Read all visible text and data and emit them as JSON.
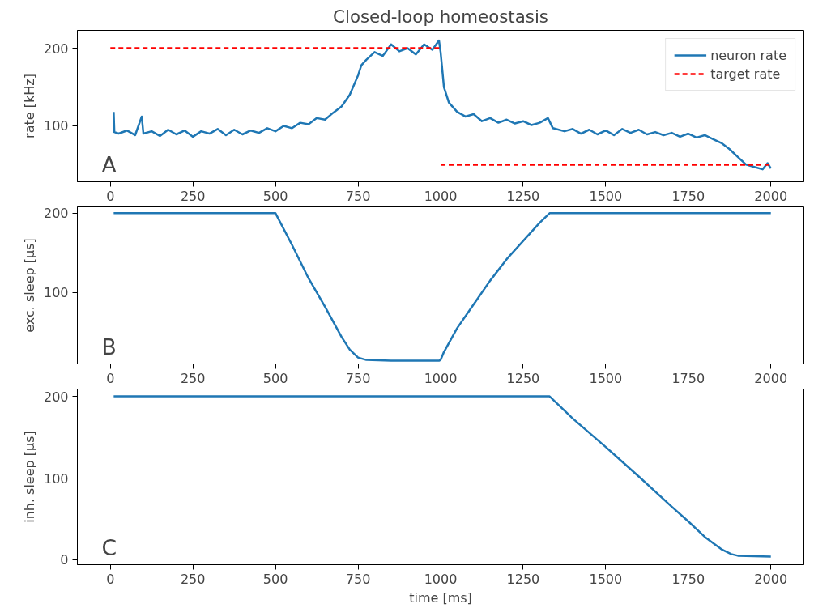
{
  "chart_data": [
    {
      "type": "line",
      "title": "Closed-loop homeostasis",
      "ylabel": "rate [kHz]",
      "xlim": [
        -100,
        2100
      ],
      "ylim": [
        28,
        223
      ],
      "xticks": [
        0,
        250,
        500,
        750,
        1000,
        1250,
        1500,
        1750,
        2000
      ],
      "yticks": [
        100,
        200
      ],
      "legend": "top right",
      "annotations": [
        "A"
      ],
      "series": [
        {
          "name": "neuron rate",
          "color": "#1f77b4",
          "line_style": "solid",
          "x": [
            10,
            12,
            25,
            50,
            75,
            95,
            100,
            125,
            150,
            175,
            200,
            225,
            250,
            275,
            300,
            325,
            350,
            375,
            400,
            425,
            450,
            475,
            500,
            525,
            550,
            575,
            600,
            625,
            650,
            675,
            700,
            725,
            750,
            760,
            775,
            800,
            825,
            850,
            875,
            900,
            925,
            950,
            975,
            995,
            1000,
            1010,
            1025,
            1050,
            1075,
            1100,
            1125,
            1150,
            1175,
            1200,
            1225,
            1250,
            1275,
            1300,
            1325,
            1340,
            1375,
            1400,
            1425,
            1450,
            1475,
            1500,
            1525,
            1550,
            1575,
            1600,
            1625,
            1650,
            1675,
            1700,
            1725,
            1750,
            1775,
            1800,
            1825,
            1850,
            1875,
            1900,
            1925,
            1950,
            1975,
            1990,
            2000
          ],
          "values": [
            118,
            92,
            90,
            94,
            88,
            112,
            90,
            93,
            87,
            95,
            89,
            94,
            86,
            93,
            90,
            96,
            88,
            95,
            89,
            94,
            91,
            97,
            93,
            100,
            97,
            104,
            102,
            110,
            108,
            117,
            125,
            140,
            165,
            178,
            185,
            195,
            190,
            205,
            196,
            200,
            192,
            205,
            198,
            210,
            195,
            150,
            130,
            118,
            112,
            115,
            106,
            110,
            104,
            108,
            103,
            106,
            101,
            104,
            110,
            97,
            93,
            96,
            90,
            95,
            89,
            94,
            88,
            96,
            91,
            95,
            89,
            92,
            88,
            91,
            86,
            90,
            85,
            88,
            83,
            78,
            70,
            60,
            50,
            47,
            44,
            52,
            45
          ]
        },
        {
          "name": "target rate",
          "color": "#ff0000",
          "line_style": "dashed",
          "x": [
            0,
            1000
          ],
          "values": [
            200,
            200
          ]
        },
        {
          "color": "#ff0000",
          "line_style": "dashed",
          "x": [
            1000,
            2000
          ],
          "values": [
            50,
            50
          ]
        }
      ]
    },
    {
      "type": "line",
      "ylabel": "exc. sleep [μs]",
      "xlim": [
        -100,
        2100
      ],
      "ylim": [
        10,
        208
      ],
      "xticks": [
        0,
        250,
        500,
        750,
        1000,
        1250,
        1500,
        1750,
        2000
      ],
      "yticks": [
        100,
        200
      ],
      "annotations": [
        "B"
      ],
      "series": [
        {
          "color": "#1f77b4",
          "line_style": "solid",
          "x": [
            10,
            500,
            550,
            600,
            650,
            700,
            725,
            750,
            775,
            850,
            950,
            995,
            1000,
            1010,
            1050,
            1100,
            1150,
            1200,
            1250,
            1300,
            1330,
            2000
          ],
          "values": [
            200,
            200,
            160,
            118,
            82,
            44,
            28,
            18,
            15,
            14,
            14,
            14,
            15,
            25,
            55,
            85,
            115,
            142,
            165,
            188,
            200,
            200
          ]
        }
      ]
    },
    {
      "type": "line",
      "xlabel": "time [ms]",
      "ylabel": "inh. sleep [μs]",
      "xlim": [
        -100,
        2100
      ],
      "ylim": [
        -6,
        209
      ],
      "xticks": [
        0,
        250,
        500,
        750,
        1000,
        1250,
        1500,
        1750,
        2000
      ],
      "yticks": [
        0,
        100,
        200
      ],
      "annotations": [
        "C"
      ],
      "series": [
        {
          "color": "#1f77b4",
          "line_style": "solid",
          "x": [
            10,
            1330,
            1400,
            1500,
            1600,
            1700,
            1750,
            1800,
            1850,
            1880,
            1900,
            2000
          ],
          "values": [
            200,
            200,
            173,
            138,
            102,
            65,
            47,
            28,
            13,
            7,
            5,
            4
          ]
        }
      ]
    }
  ]
}
